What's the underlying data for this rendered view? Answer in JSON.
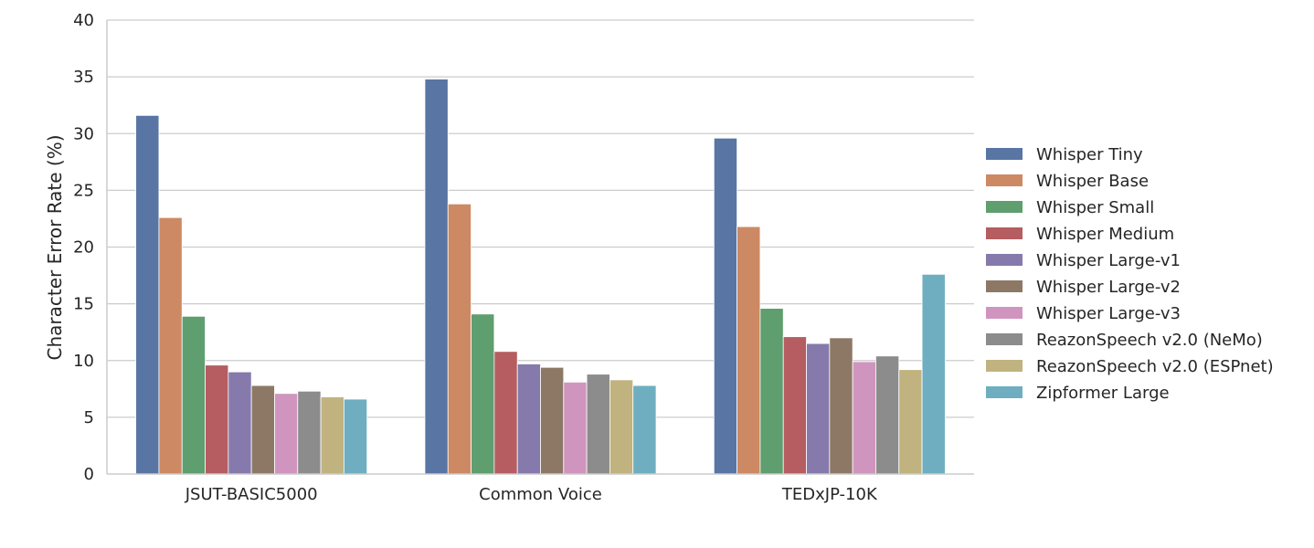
{
  "chart_data": {
    "type": "bar",
    "title": "",
    "xlabel": "",
    "ylabel": "Character Error Rate (%)",
    "ylim": [
      0,
      40
    ],
    "yticks": [
      "0",
      "5",
      "10",
      "15",
      "20",
      "25",
      "30",
      "35",
      "40"
    ],
    "grid": "horizontal",
    "legend_position": "right",
    "categories": [
      "JSUT-BASIC5000",
      "Common Voice",
      "TEDxJP-10K"
    ],
    "series": [
      {
        "name": "Whisper Tiny",
        "color": "#5875a4",
        "values": [
          31.6,
          34.8,
          29.6
        ]
      },
      {
        "name": "Whisper Base",
        "color": "#cc8963",
        "values": [
          22.6,
          23.8,
          21.8
        ]
      },
      {
        "name": "Whisper Small",
        "color": "#5f9e6e",
        "values": [
          13.9,
          14.1,
          14.6
        ]
      },
      {
        "name": "Whisper Medium",
        "color": "#b55d60",
        "values": [
          9.6,
          10.8,
          12.1
        ]
      },
      {
        "name": "Whisper Large-v1",
        "color": "#857aab",
        "values": [
          9.0,
          9.7,
          11.5
        ]
      },
      {
        "name": "Whisper Large-v2",
        "color": "#8d7866",
        "values": [
          7.8,
          9.4,
          12.0
        ]
      },
      {
        "name": "Whisper Large-v3",
        "color": "#d095bf",
        "values": [
          7.1,
          8.1,
          9.9
        ]
      },
      {
        "name": "ReazonSpeech v2.0 (NeMo)",
        "color": "#8c8c8c",
        "values": [
          7.3,
          8.8,
          10.4
        ]
      },
      {
        "name": "ReazonSpeech v2.0 (ESPnet)",
        "color": "#c1b37f",
        "values": [
          6.8,
          8.3,
          9.2
        ]
      },
      {
        "name": "Zipformer Large",
        "color": "#6eaec0",
        "values": [
          6.6,
          7.8,
          17.6
        ]
      }
    ]
  }
}
